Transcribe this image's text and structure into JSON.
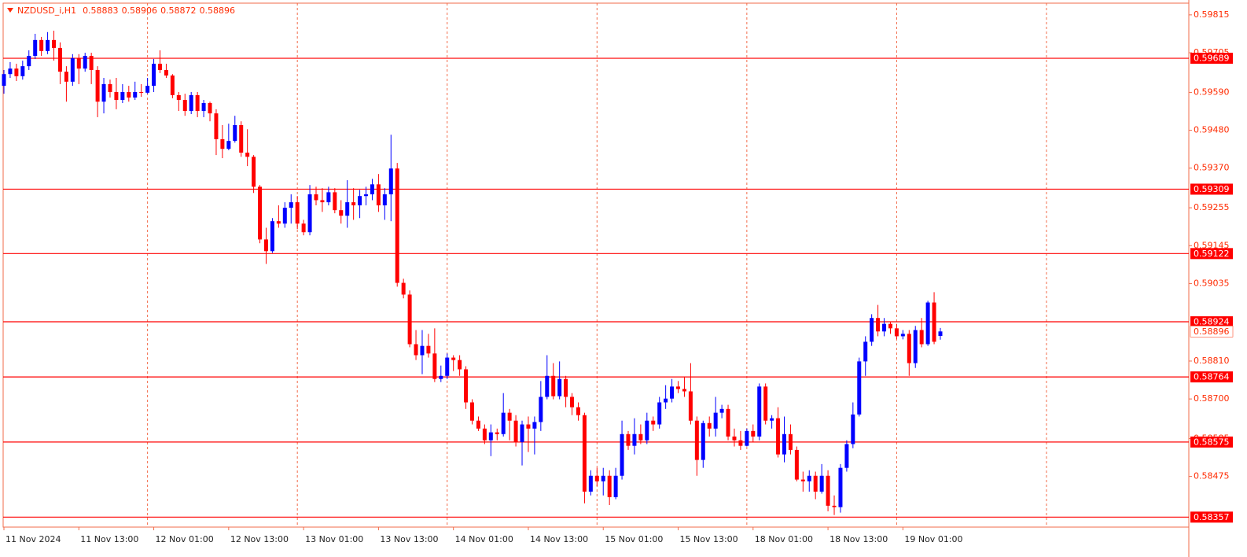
{
  "chart_data": {
    "type": "candlestick",
    "symbol": "NZDUSD_i,H1",
    "quote": [
      0.58883,
      0.58906,
      0.58872,
      0.58896
    ],
    "categories": [
      "11 Nov 2024",
      null,
      null,
      null,
      null,
      null,
      null,
      null,
      null,
      null,
      null,
      null,
      "11 Nov 13:00",
      null,
      null,
      null,
      null,
      null,
      null,
      null,
      null,
      null,
      null,
      null,
      "12 Nov 01:00",
      null,
      null,
      null,
      null,
      null,
      null,
      null,
      null,
      null,
      null,
      null,
      "12 Nov 13:00",
      null,
      null,
      null,
      null,
      null,
      null,
      null,
      null,
      null,
      null,
      null,
      "13 Nov 01:00",
      null,
      null,
      null,
      null,
      null,
      null,
      null,
      null,
      null,
      null,
      null,
      "13 Nov 13:00",
      null,
      null,
      null,
      null,
      null,
      null,
      null,
      null,
      null,
      null,
      null,
      "14 Nov 01:00",
      null,
      null,
      null,
      null,
      null,
      null,
      null,
      null,
      null,
      null,
      null,
      "14 Nov 13:00",
      null,
      null,
      null,
      null,
      null,
      null,
      null,
      null,
      null,
      null,
      null,
      "15 Nov 01:00",
      null,
      null,
      null,
      null,
      null,
      null,
      null,
      null,
      null,
      null,
      null,
      "15 Nov 13:00",
      null,
      null,
      null,
      null,
      null,
      null,
      null,
      null,
      null,
      null,
      null,
      "18 Nov 01:00",
      null,
      null,
      null,
      null,
      null,
      null,
      null,
      null,
      null,
      null,
      null,
      "18 Nov 13:00",
      null,
      null,
      null,
      null,
      null,
      null,
      null,
      null,
      null,
      null,
      null,
      "19 Nov 01:00",
      null,
      null,
      null,
      null,
      null,
      null
    ],
    "open": [
      0.59609,
      0.59643,
      0.59659,
      0.59637,
      0.59666,
      0.59696,
      0.59742,
      0.5971,
      0.59742,
      0.59719,
      0.5965,
      0.59621,
      0.59689,
      0.59659,
      0.59696,
      0.59655,
      0.59563,
      0.59614,
      0.59591,
      0.59568,
      0.59591,
      0.59575,
      0.59591,
      0.59589,
      0.59609,
      0.59673,
      0.59655,
      0.59639,
      0.59582,
      0.59568,
      0.59536,
      0.59582,
      0.59536,
      0.59559,
      0.59529,
      0.59454,
      0.59426,
      0.59449,
      0.59495,
      0.59415,
      0.59403,
      0.59316,
      0.59163,
      0.59129,
      0.59216,
      0.59209,
      0.59255,
      0.59271,
      0.59209,
      0.59184,
      0.59294,
      0.59277,
      0.59271,
      0.593,
      0.59248,
      0.59232,
      0.59271,
      0.59262,
      0.59289,
      0.59294,
      0.59323,
      0.59262,
      0.59294,
      0.59369,
      0.59037,
      0.59003,
      0.58859,
      0.58827,
      0.58854,
      0.58832,
      0.58758,
      0.58767,
      0.5882,
      0.58813,
      0.58786,
      0.5869,
      0.58637,
      0.58614,
      0.5858,
      0.58603,
      0.58598,
      0.5866,
      0.58637,
      0.58575,
      0.58626,
      0.58614,
      0.58633,
      0.58706,
      0.58767,
      0.58708,
      0.58758,
      0.58706,
      0.58676,
      0.58653,
      0.58431,
      0.58477,
      0.58461,
      0.58477,
      0.58415,
      0.58477,
      0.58598,
      0.58564,
      0.58598,
      0.5858,
      0.58637,
      0.58626,
      0.5869,
      0.58701,
      0.58736,
      0.58729,
      0.58722,
      0.58637,
      0.58523,
      0.5863,
      0.58614,
      0.5866,
      0.58671,
      0.58591,
      0.5858,
      0.58564,
      0.58607,
      0.58591,
      0.58736,
      0.58637,
      0.58644,
      0.58539,
      0.58598,
      0.58552,
      0.58466,
      0.58461,
      0.58477,
      0.58431,
      0.58477,
      0.5839,
      0.58386,
      0.585,
      0.58569,
      0.58655,
      0.58809,
      0.58866,
      0.58935,
      0.58896,
      0.58918,
      0.58905,
      0.58882,
      0.58889,
      0.58804,
      0.589,
      0.58859,
      0.5898,
      0.58883
    ],
    "high": [
      0.59655,
      0.59678,
      0.59673,
      0.59682,
      0.59712,
      0.5976,
      0.59751,
      0.59765,
      0.59769,
      0.59735,
      0.59666,
      0.59701,
      0.59701,
      0.59705,
      0.59705,
      0.59666,
      0.59632,
      0.59627,
      0.59632,
      0.59614,
      0.59609,
      0.59621,
      0.59614,
      0.59632,
      0.59687,
      0.59712,
      0.59673,
      0.59643,
      0.59591,
      0.59586,
      0.59591,
      0.59591,
      0.59568,
      0.59563,
      0.59541,
      0.59495,
      0.59499,
      0.59522,
      0.59506,
      0.59483,
      0.59408,
      0.59321,
      0.59197,
      0.59225,
      0.59262,
      0.59271,
      0.59294,
      0.59289,
      0.5922,
      0.59321,
      0.59316,
      0.59312,
      0.59316,
      0.59312,
      0.59277,
      0.59335,
      0.59312,
      0.59307,
      0.59316,
      0.59339,
      0.59353,
      0.59312,
      0.59467,
      0.59385,
      0.59049,
      0.59015,
      0.589,
      0.589,
      0.58889,
      0.58905,
      0.58797,
      0.58832,
      0.58827,
      0.58827,
      0.58795,
      0.58699,
      0.58649,
      0.58626,
      0.58626,
      0.58614,
      0.58717,
      0.58671,
      0.58653,
      0.58637,
      0.58649,
      0.58649,
      0.58752,
      0.58827,
      0.58804,
      0.58809,
      0.58767,
      0.58717,
      0.5869,
      0.5866,
      0.58493,
      0.585,
      0.585,
      0.58493,
      0.585,
      0.58637,
      0.58607,
      0.58644,
      0.58626,
      0.5866,
      0.58649,
      0.58706,
      0.5874,
      0.58758,
      0.58752,
      0.58763,
      0.58804,
      0.58649,
      0.58637,
      0.58649,
      0.58706,
      0.58683,
      0.58683,
      0.58614,
      0.58607,
      0.58614,
      0.58626,
      0.58745,
      0.58745,
      0.58653,
      0.58676,
      0.58649,
      0.58626,
      0.58562,
      0.58489,
      0.58493,
      0.58489,
      0.58511,
      0.58493,
      0.5842,
      0.58511,
      0.5858,
      0.5869,
      0.5882,
      0.58882,
      0.58946,
      0.58973,
      0.58935,
      0.58923,
      0.58918,
      0.589,
      0.589,
      0.58912,
      0.58935,
      0.58985,
      0.5901,
      0.58906
    ],
    "low": [
      0.59586,
      0.59632,
      0.59623,
      0.59627,
      0.59655,
      0.59687,
      0.59696,
      0.59701,
      0.59682,
      0.59614,
      0.59563,
      0.59609,
      0.59614,
      0.5965,
      0.59614,
      0.59518,
      0.59529,
      0.59575,
      0.59541,
      0.59559,
      0.59563,
      0.59568,
      0.59577,
      0.59586,
      0.59591,
      0.59646,
      0.59632,
      0.59573,
      0.59536,
      0.59522,
      0.59527,
      0.59518,
      0.59518,
      0.59506,
      0.59408,
      0.59399,
      0.59422,
      0.59444,
      0.59403,
      0.59376,
      0.59298,
      0.59152,
      0.59092,
      0.59124,
      0.59197,
      0.59197,
      0.59209,
      0.59193,
      0.59175,
      0.59175,
      0.59262,
      0.59243,
      0.59262,
      0.59239,
      0.59209,
      0.59197,
      0.5922,
      0.59225,
      0.59262,
      0.59277,
      0.59243,
      0.5922,
      0.59216,
      0.59026,
      0.58992,
      0.5885,
      0.58813,
      0.58772,
      0.5882,
      0.58749,
      0.58749,
      0.58758,
      0.58781,
      0.58767,
      0.58671,
      0.58626,
      0.58607,
      0.58569,
      0.58534,
      0.5858,
      0.58591,
      0.5858,
      0.58562,
      0.58507,
      0.58546,
      0.58539,
      0.58607,
      0.58699,
      0.58699,
      0.58699,
      0.58676,
      0.58653,
      0.58637,
      0.58397,
      0.5842,
      0.58447,
      0.5842,
      0.58392,
      0.58409,
      0.58466,
      0.58552,
      0.58539,
      0.58569,
      0.58569,
      0.58607,
      0.58614,
      0.58671,
      0.5869,
      0.58717,
      0.58706,
      0.58626,
      0.58477,
      0.585,
      0.58591,
      0.58591,
      0.58644,
      0.5858,
      0.58562,
      0.58552,
      0.58562,
      0.58575,
      0.5858,
      0.58626,
      0.58614,
      0.5853,
      0.58516,
      0.58539,
      0.58461,
      0.58431,
      0.58431,
      0.58409,
      0.58425,
      0.58374,
      0.58363,
      0.5837,
      0.58489,
      0.58557,
      0.58649,
      0.58767,
      0.58854,
      0.58882,
      0.58882,
      0.58889,
      0.58873,
      0.58873,
      0.58767,
      0.5879,
      0.5885,
      0.58854,
      0.58859,
      0.58872
    ],
    "close": [
      0.59643,
      0.59659,
      0.59637,
      0.59666,
      0.59696,
      0.59742,
      0.5971,
      0.59742,
      0.59719,
      0.5965,
      0.59621,
      0.59689,
      0.59659,
      0.59696,
      0.59655,
      0.59563,
      0.59614,
      0.59591,
      0.59568,
      0.59591,
      0.59575,
      0.59591,
      0.59589,
      0.59609,
      0.59673,
      0.59655,
      0.59639,
      0.59582,
      0.59568,
      0.59536,
      0.59582,
      0.59536,
      0.59559,
      0.59529,
      0.59454,
      0.59426,
      0.59449,
      0.59495,
      0.59415,
      0.59403,
      0.59316,
      0.59163,
      0.59129,
      0.59216,
      0.59209,
      0.59255,
      0.59271,
      0.59209,
      0.59184,
      0.59294,
      0.59277,
      0.59271,
      0.593,
      0.59248,
      0.59232,
      0.59271,
      0.59262,
      0.59289,
      0.59294,
      0.59323,
      0.59262,
      0.59294,
      0.59369,
      0.59037,
      0.59003,
      0.58859,
      0.58827,
      0.58854,
      0.58832,
      0.58758,
      0.58767,
      0.5882,
      0.58813,
      0.58786,
      0.5869,
      0.58637,
      0.58614,
      0.5858,
      0.58603,
      0.58598,
      0.5866,
      0.58637,
      0.58575,
      0.58626,
      0.58614,
      0.58633,
      0.58706,
      0.58767,
      0.58708,
      0.58758,
      0.58706,
      0.58676,
      0.58653,
      0.58431,
      0.58477,
      0.58461,
      0.58477,
      0.58415,
      0.58477,
      0.58598,
      0.58564,
      0.58598,
      0.5858,
      0.58637,
      0.58626,
      0.5869,
      0.58701,
      0.58736,
      0.58729,
      0.58722,
      0.58637,
      0.58523,
      0.5863,
      0.58614,
      0.5866,
      0.58671,
      0.58591,
      0.5858,
      0.58564,
      0.58607,
      0.58591,
      0.58736,
      0.58637,
      0.58644,
      0.58539,
      0.58598,
      0.58552,
      0.58466,
      0.58461,
      0.58477,
      0.58431,
      0.58477,
      0.5839,
      0.58386,
      0.585,
      0.58569,
      0.58655,
      0.58809,
      0.58866,
      0.58935,
      0.58896,
      0.58918,
      0.58905,
      0.58882,
      0.58889,
      0.58804,
      0.589,
      0.58859,
      0.5898,
      0.58866,
      0.58896
    ],
    "up_color": "#0000ff",
    "down_color": "#ff0000",
    "level_color": "#ff0000",
    "levels": [
      0.59689,
      0.59309,
      0.59122,
      0.58924,
      0.58764,
      0.58575,
      0.58357
    ],
    "ylim": [
      0.58328,
      0.59849
    ],
    "yticks": [
      0.59815,
      0.59705,
      {
        "value": 0.5959,
        "label": "0.59590"
      },
      {
        "value": 0.5948,
        "label": "0.59480"
      },
      {
        "value": 0.5937,
        "label": "0.59370"
      },
      0.59255,
      0.59145,
      0.59035,
      {
        "value": 0.5881,
        "label": "0.58810"
      },
      {
        "value": 0.587,
        "label": "0.58700"
      },
      0.58585,
      0.58475
    ]
  }
}
